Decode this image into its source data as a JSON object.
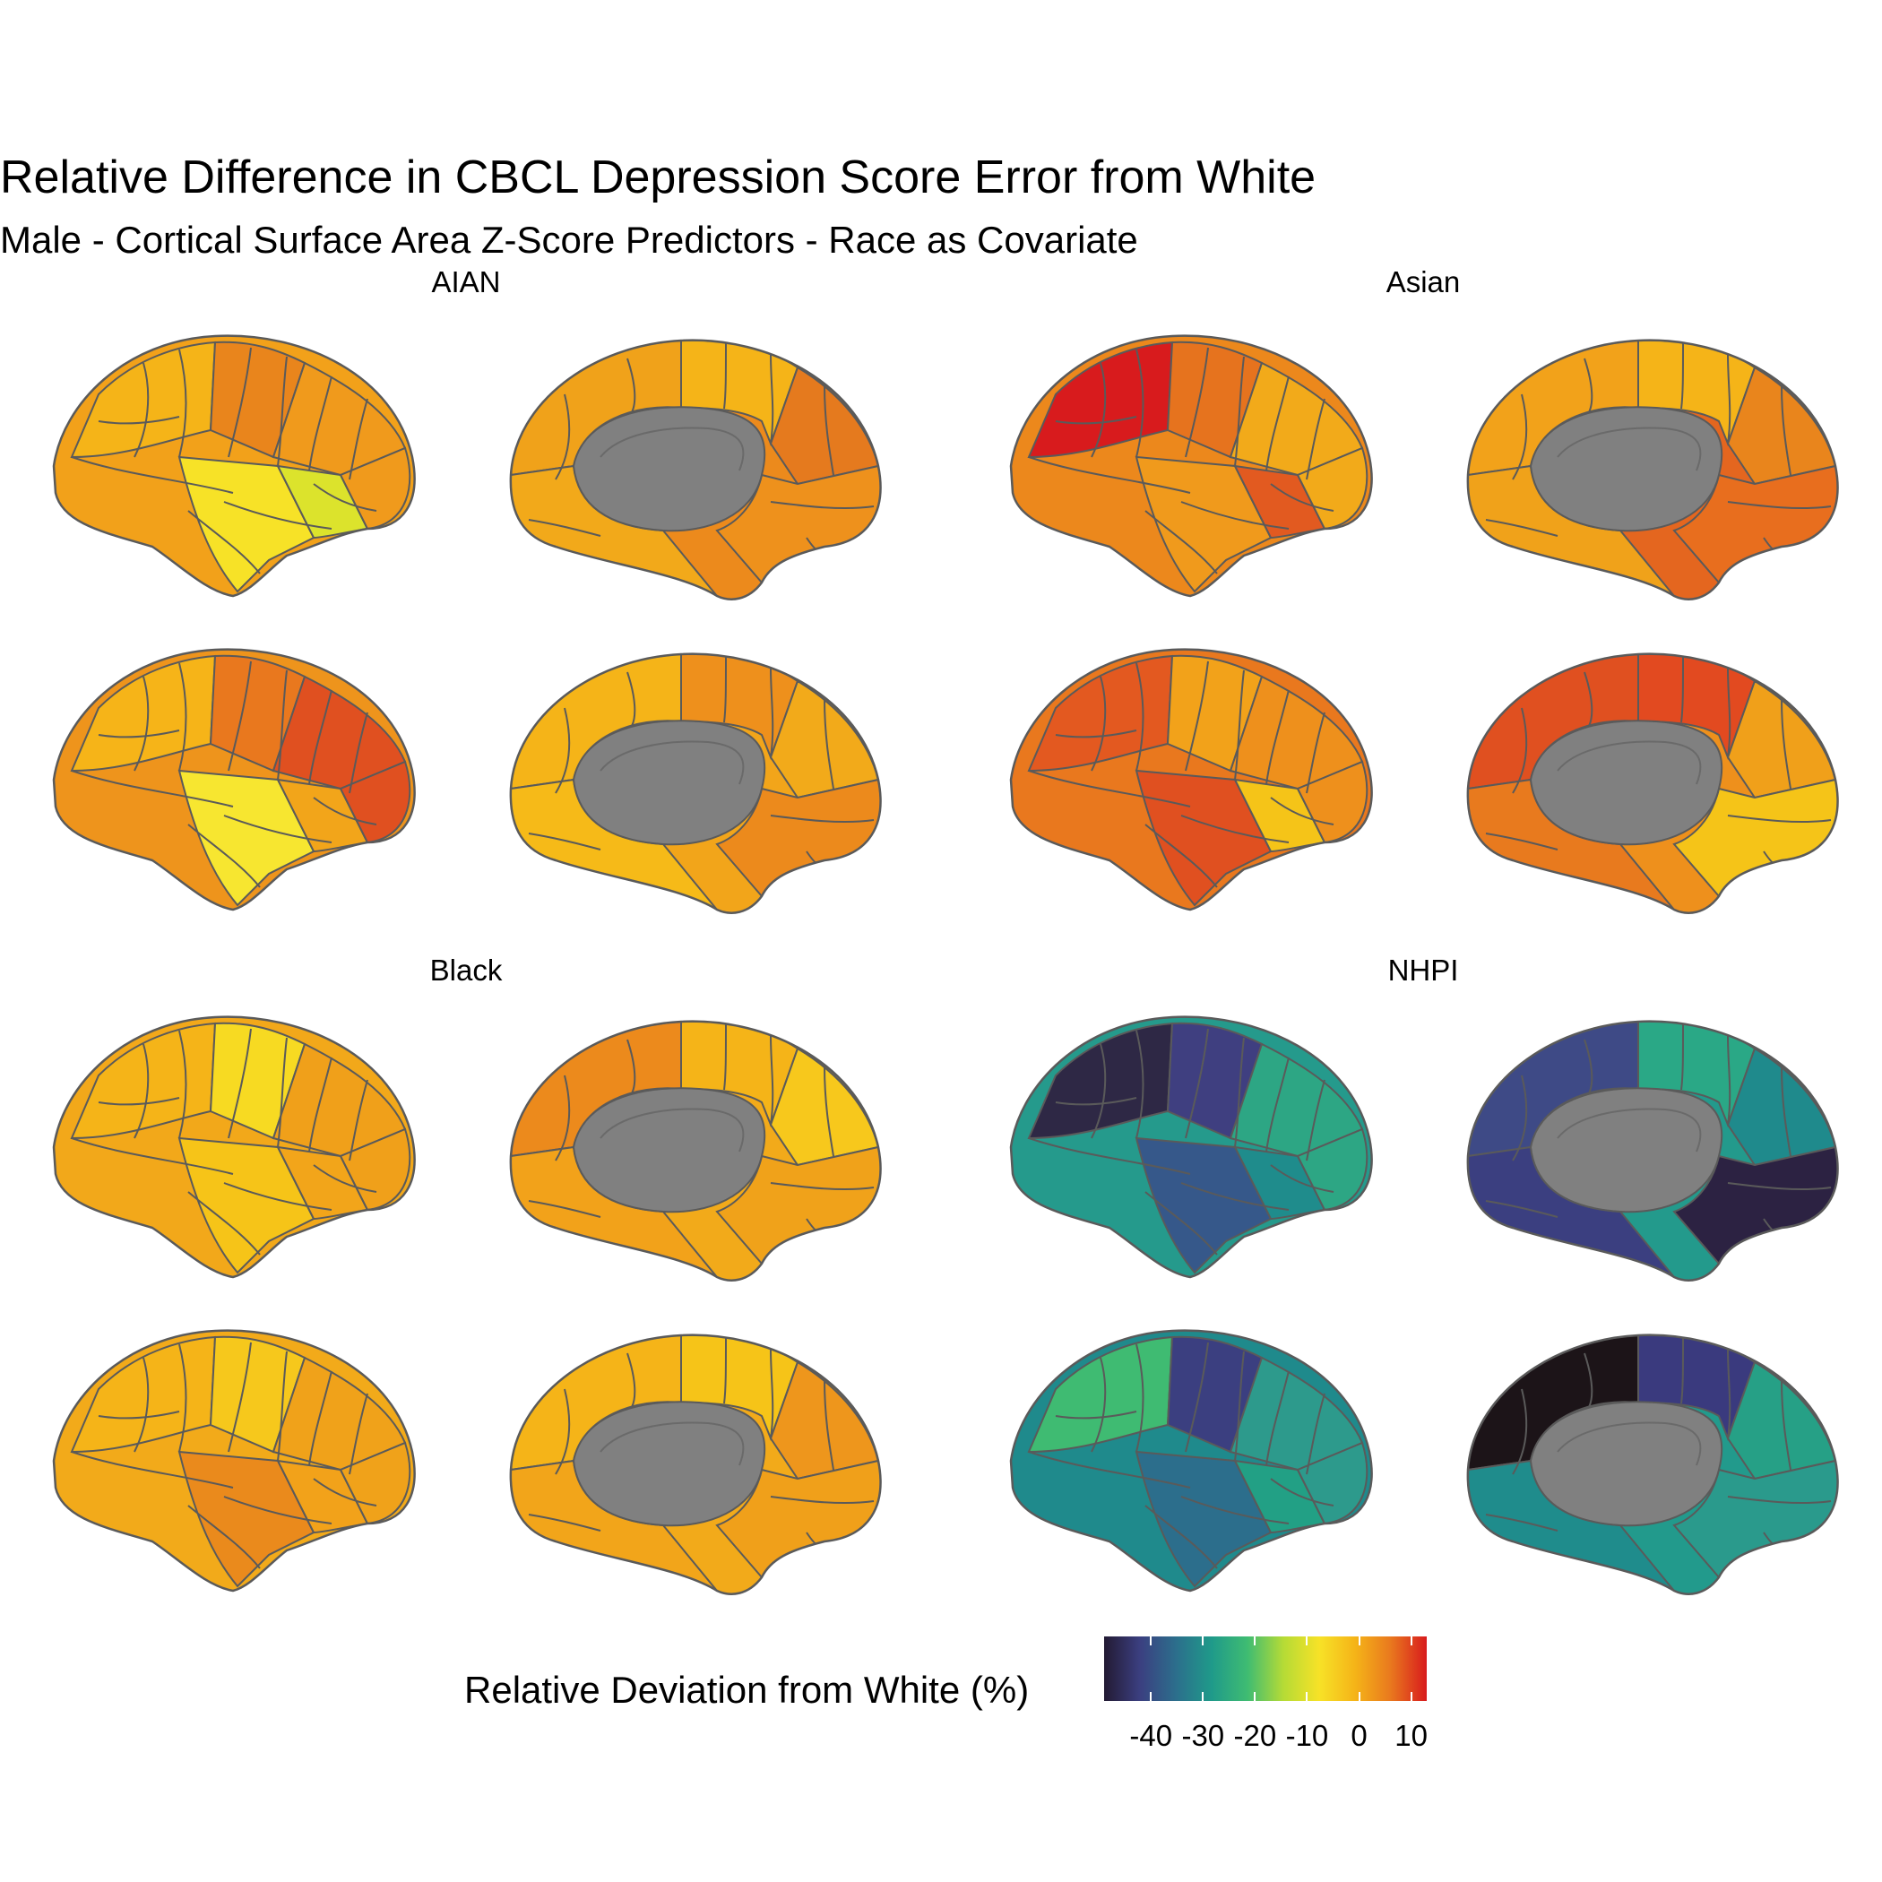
{
  "title": "Relative Difference in CBCL Depression Score Error from White",
  "subtitle": "Male - Cortical Surface Area Z-Score Predictors - Race as Covariate",
  "panels": [
    {
      "label": "AIAN",
      "views": [
        {
          "base": "#F2A11A",
          "accents": [
            "#F5B418",
            "#E9851C",
            "#F7E227",
            "#DCE32C",
            "#F09A1C"
          ]
        },
        {
          "base": "#EC8A1C",
          "accents": [
            "#F0A21A",
            "#F5B418",
            "#E57A1E",
            "#F2A91A",
            "#EE911C"
          ]
        },
        {
          "base": "#EE941C",
          "accents": [
            "#F6B418",
            "#E9781E",
            "#F7E630",
            "#F2A51A",
            "#E05020"
          ]
        },
        {
          "base": "#F2A51A",
          "accents": [
            "#F5B418",
            "#EE901C",
            "#F2AA1A",
            "#F6BA18",
            "#EC8A1C"
          ]
        }
      ]
    },
    {
      "label": "Asian",
      "views": [
        {
          "base": "#EC881C",
          "accents": [
            "#D81B1D",
            "#E6731E",
            "#F09A1C",
            "#E25A20",
            "#F2AA1A"
          ]
        },
        {
          "base": "#E4661F",
          "accents": [
            "#F2A21A",
            "#F5B418",
            "#E9851C",
            "#F0A21A",
            "#E86E1E"
          ]
        },
        {
          "base": "#E9781E",
          "accents": [
            "#E35920",
            "#F2A21A",
            "#E05020",
            "#F5C418",
            "#EE901C"
          ]
        },
        {
          "base": "#EE901C",
          "accents": [
            "#E05020",
            "#E24A20",
            "#F0A01A",
            "#E87A1E",
            "#F5C418"
          ]
        }
      ]
    },
    {
      "label": "Black",
      "views": [
        {
          "base": "#F2A81A",
          "accents": [
            "#F5B418",
            "#F7DA22",
            "#F6C418",
            "#F2A51A",
            "#F0A01A"
          ]
        },
        {
          "base": "#F2AA1A",
          "accents": [
            "#EC8A1C",
            "#F5B418",
            "#F7C81C",
            "#F2A21A",
            "#F0A21A"
          ]
        },
        {
          "base": "#F2AA1A",
          "accents": [
            "#F5B418",
            "#F6C81C",
            "#EA8A1C",
            "#F2A21A",
            "#F0A21A"
          ]
        },
        {
          "base": "#F2AA1A",
          "accents": [
            "#F5B418",
            "#F6C418",
            "#EE961C",
            "#F2A51A",
            "#F0A01A"
          ]
        }
      ]
    },
    {
      "label": "NHPI",
      "views": [
        {
          "base": "#259A8C",
          "accents": [
            "#2E2845",
            "#3F3F80",
            "#36588A",
            "#1F8C8C",
            "#2DA684"
          ]
        },
        {
          "base": "#239A8C",
          "accents": [
            "#3E4A86",
            "#2AA886",
            "#1F8A8C",
            "#3B3F80",
            "#2C2242"
          ]
        },
        {
          "base": "#1F8A8C",
          "accents": [
            "#3FBB72",
            "#3B3F80",
            "#2C6E8C",
            "#22A085",
            "#2D9A8C"
          ]
        },
        {
          "base": "#229A8C",
          "accents": [
            "#1C1418",
            "#3A3A7E",
            "#26A086",
            "#1F8C8C",
            "#2A9A8C"
          ]
        }
      ]
    }
  ],
  "legend": {
    "title": "Relative Deviation from White (%)",
    "ticks": [
      {
        "value": -40,
        "label": "-40"
      },
      {
        "value": -30,
        "label": "-30"
      },
      {
        "value": -20,
        "label": "-20"
      },
      {
        "value": -10,
        "label": "-10"
      },
      {
        "value": 0,
        "label": "0"
      },
      {
        "value": 10,
        "label": "10"
      }
    ],
    "range": [
      -49,
      13
    ],
    "gradient": [
      "#231A33",
      "#3B3F80",
      "#2C6E8C",
      "#1F9A8A",
      "#3FBC72",
      "#B5DB36",
      "#F7E227",
      "#F5B418",
      "#E9781E",
      "#D81B1D"
    ]
  }
}
